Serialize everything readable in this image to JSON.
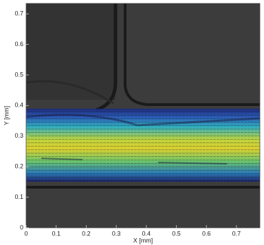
{
  "chart_data": {
    "type": "image-plot",
    "xlabel": "X [mm]",
    "ylabel": "Y [mm]",
    "xlim": [
      0,
      0.778
    ],
    "ylim": [
      0,
      0.734
    ],
    "xticks": [
      0,
      0.1,
      0.2,
      0.3,
      0.4,
      0.5,
      0.6,
      0.7
    ],
    "yticks": [
      0,
      0.1,
      0.2,
      0.3,
      0.4,
      0.5,
      0.6,
      0.7
    ]
  }
}
